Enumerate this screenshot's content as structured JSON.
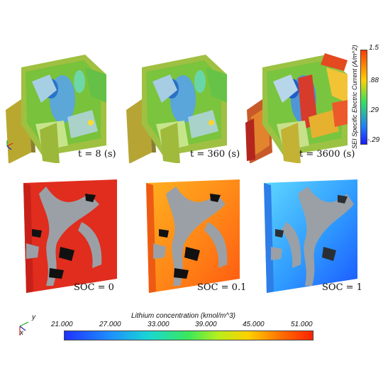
{
  "top_row": {
    "captions": [
      "t = 8 (s)",
      "t = 360 (s)",
      "t = 3600 (s)"
    ]
  },
  "sei_colorbar": {
    "title": "SEI Specific Electric Current (A/m^2)",
    "ticks": [
      "1.5",
      ".88",
      ".29",
      "-.29"
    ],
    "colors": [
      "#ff3b00",
      "#ffd200",
      "#35e05a",
      "#1e7dff",
      "#1a1aff"
    ]
  },
  "bottom_row": {
    "captions": [
      "SOC = 0",
      "SOC = 0.1",
      "SOC = 1"
    ]
  },
  "lithium_colorbar": {
    "title": "Lithium concentration (kmol/m^3)",
    "ticks": [
      "21.000",
      "27.000",
      "33.000",
      "39.000",
      "45.000",
      "51.000"
    ],
    "colors": [
      "#1f32ff",
      "#1e8dff",
      "#19d7d2",
      "#3be85a",
      "#b9ee1d",
      "#ffd000",
      "#ff6a00",
      "#ff2200"
    ]
  },
  "axis_triad": {
    "y_label": "y",
    "x_label": "x"
  }
}
